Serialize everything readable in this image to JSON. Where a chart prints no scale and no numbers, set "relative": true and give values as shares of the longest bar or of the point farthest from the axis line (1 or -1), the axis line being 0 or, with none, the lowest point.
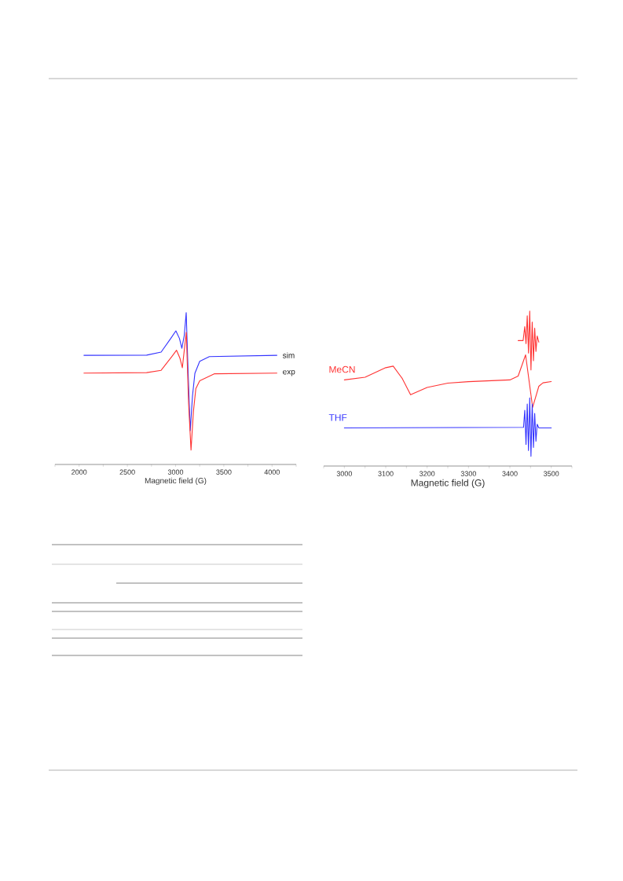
{
  "chart_data": [
    {
      "type": "line",
      "relative": true,
      "xlabel": "Magnetic field (G)",
      "xlim": [
        1750,
        4250
      ],
      "xticks": [
        {
          "value": 1750,
          "label": null
        },
        2000,
        {
          "value": 2250,
          "label": null
        },
        2500,
        {
          "value": 2750,
          "label": null
        },
        3000,
        {
          "value": 3250,
          "label": null
        },
        3500,
        {
          "value": 3750,
          "label": null
        },
        4000,
        {
          "value": 4250,
          "label": null
        }
      ],
      "legend": false,
      "tick_labels": "x",
      "series": [
        {
          "name": "sim",
          "color": "#3333ff",
          "x": [
            2050,
            2700,
            2850,
            2950,
            3003,
            3040,
            3065,
            3090,
            3110,
            3130,
            3152,
            3175,
            3200,
            3250,
            3350,
            4050
          ],
          "values": [
            0.719,
            0.72,
            0.74,
            0.83,
            0.88,
            0.83,
            0.765,
            0.85,
            1.0,
            0.6,
            0.223,
            0.45,
            0.6,
            0.679,
            0.71,
            0.719
          ]
        },
        {
          "name": "exp",
          "color": "#ff3333",
          "x": [
            2050,
            2700,
            2850,
            2960,
            3010,
            3045,
            3070,
            3095,
            3111,
            3135,
            3160,
            3185,
            3210,
            3250,
            3400,
            4050
          ],
          "values": [
            0.602,
            0.605,
            0.62,
            0.71,
            0.752,
            0.7,
            0.637,
            0.78,
            0.87,
            0.4,
            0.095,
            0.35,
            0.5,
            0.551,
            0.597,
            0.602
          ]
        }
      ]
    },
    {
      "type": "line",
      "relative": true,
      "xlabel": "Magnetic field (G)",
      "xlim": [
        2950,
        3550
      ],
      "xticks": [
        {
          "value": 2950,
          "label": null
        },
        3000,
        {
          "value": 3050,
          "label": null
        },
        3100,
        {
          "value": 3150,
          "label": null
        },
        3200,
        {
          "value": 3250,
          "label": null
        },
        3300,
        {
          "value": 3350,
          "label": null
        },
        3400,
        {
          "value": 3450,
          "label": null
        },
        3500,
        {
          "value": 3550,
          "label": null
        }
      ],
      "legend": false,
      "tick_labels": "x",
      "series": [
        {
          "name": "MeCN",
          "color": "#ff3333",
          "x": [
            3000,
            3050,
            3100,
            3118,
            3140,
            3160,
            3200,
            3250,
            3300,
            3400,
            3420,
            3438,
            3455,
            3470,
            3480,
            3500
          ],
          "values": [
            0.556,
            0.573,
            0.635,
            0.645,
            0.565,
            0.46,
            0.507,
            0.535,
            0.545,
            0.556,
            0.581,
            0.718,
            0.379,
            0.515,
            0.537,
            0.545
          ]
        },
        {
          "color": "#ff3333",
          "x": [
            3420,
            3432,
            3436,
            3439,
            3442,
            3445,
            3448,
            3451,
            3454,
            3457,
            3460,
            3463,
            3466,
            3470
          ],
          "values": [
            0.81,
            0.81,
            0.9,
            0.79,
            0.97,
            0.73,
            1.0,
            0.62,
            0.93,
            0.68,
            0.89,
            0.74,
            0.84,
            0.8
          ]
        },
        {
          "name": "THF",
          "color": "#3333ff",
          "x": [
            3000,
            3433,
            3436,
            3439,
            3442,
            3445,
            3448,
            3451,
            3454,
            3457,
            3460,
            3463,
            3466,
            3470,
            3500
          ],
          "values": [
            0.246,
            0.25,
            0.36,
            0.14,
            0.4,
            0.1,
            0.44,
            0.063,
            0.4,
            0.12,
            0.34,
            0.16,
            0.27,
            0.246,
            0.246
          ]
        }
      ]
    }
  ]
}
